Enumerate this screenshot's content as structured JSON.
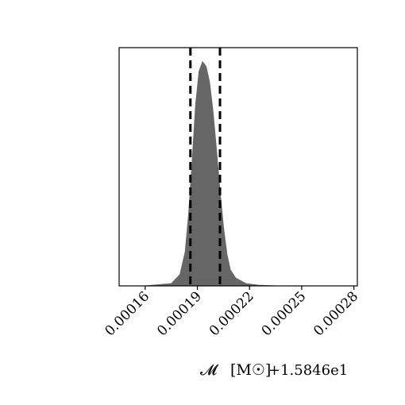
{
  "chart_data": {
    "type": "area",
    "title": "",
    "xlabel": "𝓜 [M☉]",
    "xlabel_symbol": "𝓜",
    "xlabel_unit": "[M☉]",
    "x_offset_label": "+1.5846e1",
    "ylabel": "",
    "xlim": [
      0.000145,
      0.000282
    ],
    "ylim": [
      0,
      1.0
    ],
    "x_ticks": [
      0.00016,
      0.00019,
      0.00022,
      0.00025,
      0.00028
    ],
    "x_tick_labels": [
      "0.00016",
      "0.00019",
      "0.00022",
      "0.00025",
      "0.00028"
    ],
    "y_ticks_shown": false,
    "grid": false,
    "fill_color": "#666666",
    "line_color": "#000000",
    "marginal_x": [
      0.00016,
      0.000175,
      0.00018,
      0.000183,
      0.000185,
      0.000187,
      0.000189,
      0.000191,
      0.000193,
      0.000195,
      0.000197,
      0.000199,
      0.000201,
      0.000203,
      0.000205,
      0.000207,
      0.000209,
      0.000212,
      0.000218,
      0.000225,
      0.000235
    ],
    "marginal_density": [
      0.0,
      0.01,
      0.05,
      0.15,
      0.32,
      0.55,
      0.8,
      0.95,
      0.99,
      0.97,
      0.9,
      0.77,
      0.6,
      0.42,
      0.26,
      0.14,
      0.07,
      0.035,
      0.01,
      0.003,
      0.0
    ],
    "quantile_lines": [
      0.000186,
      0.000203
    ]
  }
}
